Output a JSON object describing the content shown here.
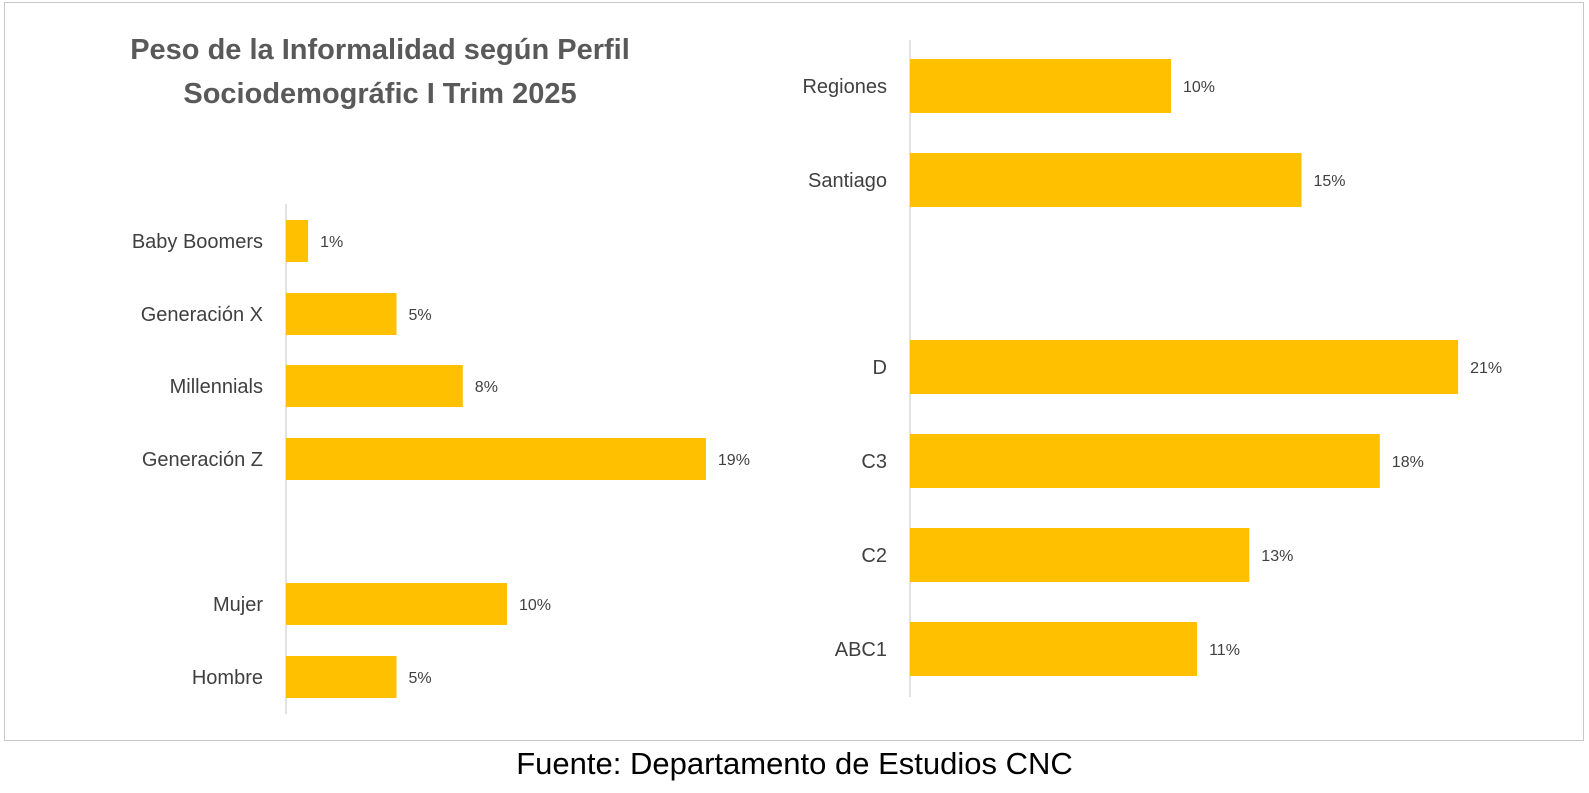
{
  "title_line1": "Peso de la Informalidad según Perfil",
  "title_line2": "Sociodemográfic I Trim 2025",
  "source": "Fuente: Departamento de Estudios CNC",
  "bar_color": "#FFC000",
  "axis_color": "#d9d9d9",
  "chart_data": [
    {
      "type": "bar",
      "orientation": "horizontal",
      "categories": [
        "Baby Boomers",
        "Generación X",
        "Millennials",
        "Generación Z",
        "Mujer",
        "Hombre"
      ],
      "values": [
        1,
        5,
        8,
        19,
        10,
        5
      ],
      "labels": [
        "1%",
        "5%",
        "8%",
        "19%",
        "10%",
        "5%"
      ],
      "unit": "%"
    },
    {
      "type": "bar",
      "orientation": "horizontal",
      "categories": [
        "Regiones",
        "Santiago",
        "D",
        "C3",
        "C2",
        "ABC1"
      ],
      "values": [
        10,
        15,
        21,
        18,
        13,
        11
      ],
      "labels": [
        "10%",
        "15%",
        "21%",
        "18%",
        "13%",
        "11%"
      ],
      "unit": "%"
    }
  ]
}
